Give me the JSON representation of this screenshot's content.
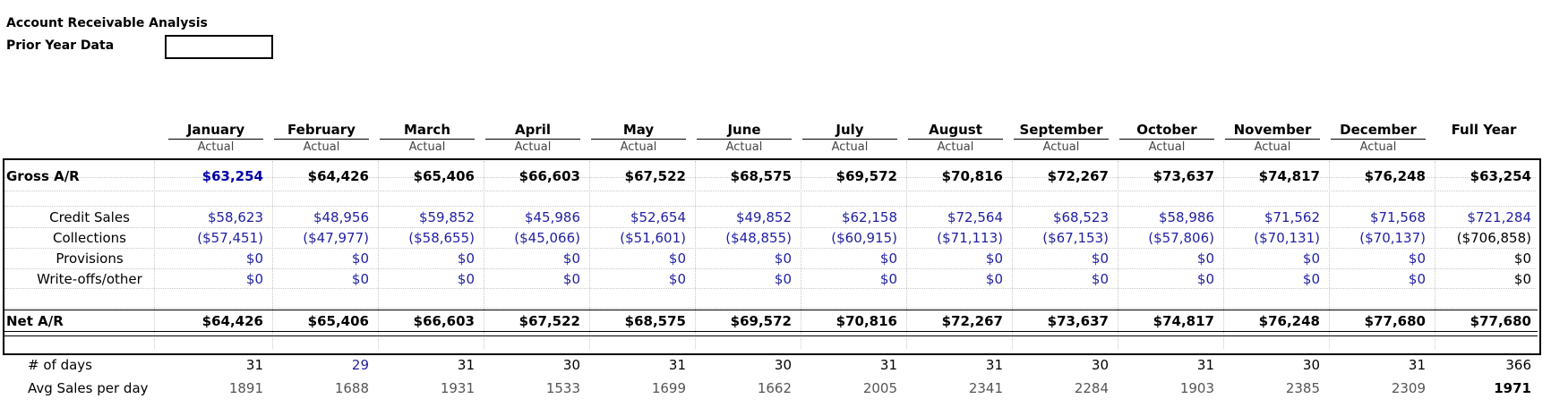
{
  "title": "Account Receivable Analysis",
  "prior_year_label": "Prior Year Data",
  "prior_year_value": "",
  "columns": [
    {
      "name": "January",
      "sub": "Actual"
    },
    {
      "name": "February",
      "sub": "Actual"
    },
    {
      "name": "March",
      "sub": "Actual"
    },
    {
      "name": "April",
      "sub": "Actual"
    },
    {
      "name": "May",
      "sub": "Actual"
    },
    {
      "name": "June",
      "sub": "Actual"
    },
    {
      "name": "July",
      "sub": "Actual"
    },
    {
      "name": "August",
      "sub": "Actual"
    },
    {
      "name": "September",
      "sub": "Actual"
    },
    {
      "name": "October",
      "sub": "Actual"
    },
    {
      "name": "November",
      "sub": "Actual"
    },
    {
      "name": "December",
      "sub": "Actual"
    },
    {
      "name": "Full Year",
      "sub": ""
    }
  ],
  "rows": {
    "gross": {
      "label": "Gross A/R",
      "values": [
        "$63,254",
        "$64,426",
        "$65,406",
        "$66,603",
        "$67,522",
        "$68,575",
        "$69,572",
        "$70,816",
        "$72,267",
        "$73,637",
        "$74,817",
        "$76,248",
        "$63,254"
      ]
    },
    "credit_sales": {
      "label": "Credit Sales",
      "values": [
        "$58,623",
        "$48,956",
        "$59,852",
        "$45,986",
        "$52,654",
        "$49,852",
        "$62,158",
        "$72,564",
        "$68,523",
        "$58,986",
        "$71,562",
        "$71,568",
        "$721,284"
      ]
    },
    "collections": {
      "label": "Collections",
      "values": [
        "($57,451)",
        "($47,977)",
        "($58,655)",
        "($45,066)",
        "($51,601)",
        "($48,855)",
        "($60,915)",
        "($71,113)",
        "($67,153)",
        "($57,806)",
        "($70,131)",
        "($70,137)",
        "($706,858)"
      ]
    },
    "provisions": {
      "label": "Provisions",
      "values": [
        "$0",
        "$0",
        "$0",
        "$0",
        "$0",
        "$0",
        "$0",
        "$0",
        "$0",
        "$0",
        "$0",
        "$0",
        "$0"
      ]
    },
    "writeoffs": {
      "label": "Write-offs/other",
      "values": [
        "$0",
        "$0",
        "$0",
        "$0",
        "$0",
        "$0",
        "$0",
        "$0",
        "$0",
        "$0",
        "$0",
        "$0",
        "$0"
      ]
    },
    "net": {
      "label": "Net A/R",
      "values": [
        "$64,426",
        "$65,406",
        "$66,603",
        "$67,522",
        "$68,575",
        "$69,572",
        "$70,816",
        "$72,267",
        "$73,637",
        "$74,817",
        "$76,248",
        "$77,680",
        "$77,680"
      ]
    },
    "days": {
      "label": "# of days",
      "values": [
        "31",
        "29",
        "31",
        "30",
        "31",
        "30",
        "31",
        "31",
        "30",
        "31",
        "30",
        "31",
        "366"
      ]
    },
    "avg_sales": {
      "label": "Avg Sales per day",
      "values": [
        "1891",
        "1688",
        "1931",
        "1533",
        "1699",
        "1662",
        "2005",
        "2341",
        "2284",
        "1903",
        "2385",
        "2309",
        "1971"
      ]
    }
  },
  "colors": {
    "input_blue": "#1f1fa3",
    "link_blue": "#0000a8",
    "grey": "#555555"
  }
}
